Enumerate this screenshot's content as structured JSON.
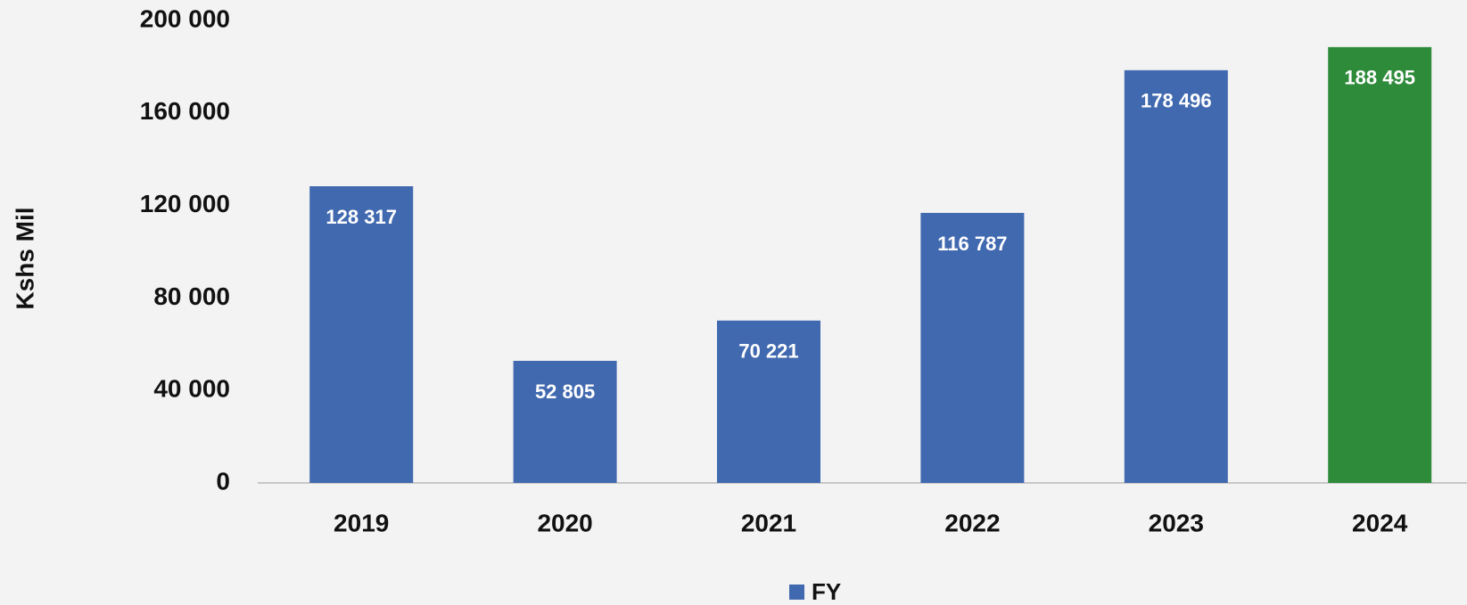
{
  "chart_data": {
    "type": "bar",
    "y_label": "Kshs Mil",
    "categories": [
      "2019",
      "2020",
      "2021",
      "2022",
      "2023",
      "2024"
    ],
    "series": [
      {
        "name": "FY",
        "color": "#4169af",
        "colors": [
          "#4169af",
          "#4169af",
          "#4169af",
          "#4169af",
          "#4169af",
          "#2e8b3a"
        ],
        "values": [
          128317,
          52805,
          70221,
          116787,
          178496,
          188495
        ],
        "value_labels": [
          "128 317",
          "52 805",
          "70 221",
          "116 787",
          "178 496",
          "188 495"
        ]
      }
    ],
    "ylim": [
      0,
      200000
    ],
    "yticks": [
      0,
      {
        "value": 40000,
        "label": "40 000"
      },
      {
        "value": 80000,
        "label": "80 000"
      },
      {
        "value": 120000,
        "label": "120 000"
      },
      {
        "value": 160000,
        "label": "160 000"
      },
      {
        "value": 200000,
        "label": "200 000"
      }
    ],
    "grid": false,
    "legend": "bottom"
  }
}
